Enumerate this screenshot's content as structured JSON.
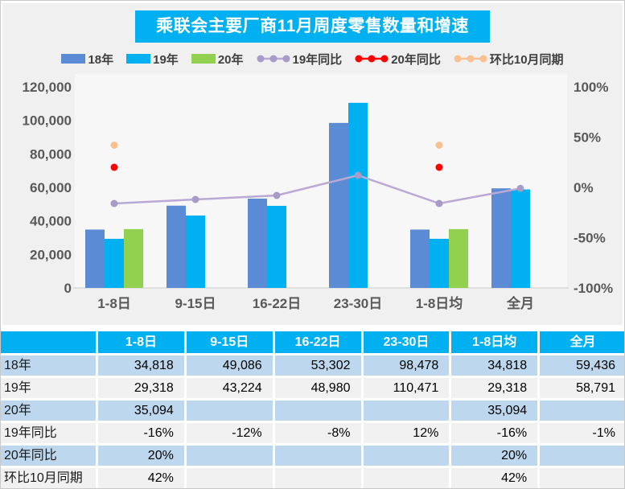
{
  "chart": {
    "title": "乘联会主要厂商11月周度零售数量和增速",
    "legend": [
      {
        "label": "18年",
        "type": "bar",
        "color": "#5B8BD4"
      },
      {
        "label": "19年",
        "type": "bar",
        "color": "#00B0F0"
      },
      {
        "label": "20年",
        "type": "bar",
        "color": "#92D050"
      },
      {
        "label": "19年同比",
        "type": "line",
        "color": "#B9A9D4",
        "dot_color": "#A79BC8"
      },
      {
        "label": "20年同比",
        "type": "line",
        "color": "#FF0000",
        "dot_color": "#FF0000"
      },
      {
        "label": "环比10月同期",
        "type": "line",
        "color": "#FAC090",
        "dot_color": "#FAC090"
      }
    ]
  },
  "chart_data": {
    "type": "bar",
    "categories": [
      "1-8日",
      "9-15日",
      "16-22日",
      "23-30日",
      "1-8日均",
      "全月"
    ],
    "bar_series": [
      {
        "name": "18年",
        "color": "#5B8BD4",
        "values": [
          34818,
          49086,
          53302,
          98478,
          34818,
          59436
        ]
      },
      {
        "name": "19年",
        "color": "#00B0F0",
        "values": [
          29318,
          43224,
          48980,
          110471,
          29318,
          58791
        ]
      },
      {
        "name": "20年",
        "color": "#92D050",
        "values": [
          35094,
          null,
          null,
          null,
          35094,
          null
        ]
      }
    ],
    "line_series": [
      {
        "name": "19年同比",
        "axis": "right",
        "style": "line+dot",
        "color": "#B9A9D4",
        "dot_color": "#A79BC8",
        "values": [
          -16,
          -12,
          -8,
          12,
          -16,
          -1
        ]
      },
      {
        "name": "20年同比",
        "axis": "right",
        "style": "dot",
        "color": "#FF0000",
        "dot_color": "#FF0000",
        "values": [
          20,
          null,
          null,
          null,
          20,
          null
        ]
      },
      {
        "name": "环比10月同期",
        "axis": "right",
        "style": "dot",
        "color": "#FAC090",
        "dot_color": "#FAC090",
        "values": [
          42,
          null,
          null,
          null,
          42,
          null
        ]
      }
    ],
    "y_left": {
      "min": 0,
      "max": 120000,
      "step": 20000,
      "ticks": [
        "0",
        "20,000",
        "40,000",
        "60,000",
        "80,000",
        "100,000",
        "120,000"
      ]
    },
    "y_right": {
      "min": -100,
      "max": 100,
      "step": 50,
      "ticks": [
        "-100%",
        "-50%",
        "0%",
        "50%",
        "100%"
      ]
    },
    "title": "乘联会主要厂商11月周度零售数量和增速",
    "xlabel": "",
    "ylabel": "",
    "legend_position": "top",
    "grid": false
  },
  "table": {
    "header": [
      "",
      "1-8日",
      "9-15日",
      "16-22日",
      "23-30日",
      "1-8日均",
      "全月"
    ],
    "rows": [
      {
        "label": "18年",
        "shade": "blue",
        "cells": [
          "34,818",
          "49,086",
          "53,302",
          "98,478",
          "34,818",
          "59,436"
        ]
      },
      {
        "label": "19年",
        "shade": "gray",
        "cells": [
          "29,318",
          "43,224",
          "48,980",
          "110,471",
          "29,318",
          "58,791"
        ]
      },
      {
        "label": "20年",
        "shade": "blue",
        "cells": [
          "35,094",
          "",
          "",
          "",
          "35,094",
          ""
        ]
      },
      {
        "label": "19年同比",
        "shade": "gray",
        "cells": [
          "-16%",
          "-12%",
          "-8%",
          "12%",
          "-16%",
          "-1%"
        ]
      },
      {
        "label": "20年同比",
        "shade": "blue",
        "cells": [
          "20%",
          "",
          "",
          "",
          "20%",
          ""
        ]
      },
      {
        "label": "环比10月同期",
        "shade": "gray",
        "cells": [
          "42%",
          "",
          "",
          "",
          "42%",
          ""
        ]
      }
    ]
  },
  "colors": {
    "accent_cyan": "#00B0F0",
    "panel_gray": "#F0F0F0",
    "plot_bg": "#F7F7F7",
    "axis_text": "#595959",
    "axis_line": "#D9D9D9",
    "row_blue": "#BDD7EE",
    "row_gray": "#F1F1F1"
  }
}
